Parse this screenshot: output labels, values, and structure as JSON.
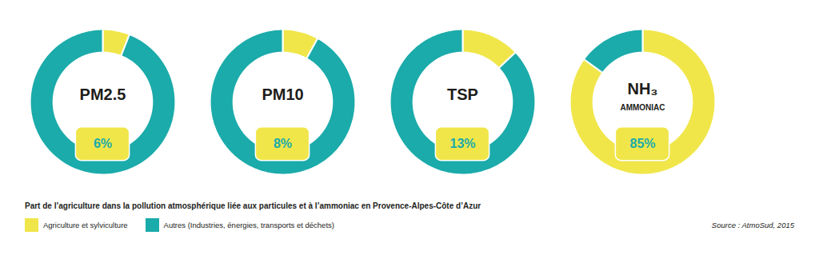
{
  "title": "Part de l’agriculture dans la pollution atmosphérique liée aux particules et à l’ammoniac en Provence-Alpes-Côte d’Azur",
  "legend": "bottom",
  "annotations": [
    "Source : AtmoSud, 2015"
  ],
  "chart_data": [
    {
      "type": "pie",
      "title": "PM2.5",
      "categories": [
        "Agriculture et sylviculture",
        "Autres (Industries, énergies, transports et déchets)"
      ],
      "values": [
        6,
        94
      ],
      "value_labels": [
        "6%",
        null
      ],
      "colors": [
        "#F0E64A",
        "#1AABAA"
      ]
    },
    {
      "type": "pie",
      "title": "PM10",
      "categories": [
        "Agriculture et sylviculture",
        "Autres (Industries, énergies, transports et déchets)"
      ],
      "values": [
        8,
        92
      ],
      "value_labels": [
        "8%",
        null
      ],
      "colors": [
        "#F0E64A",
        "#1AABAA"
      ]
    },
    {
      "type": "pie",
      "title": "TSP",
      "categories": [
        "Agriculture et sylviculture",
        "Autres (Industries, énergies, transports et déchets)"
      ],
      "values": [
        13,
        87
      ],
      "value_labels": [
        "13%",
        null
      ],
      "colors": [
        "#F0E64A",
        "#1AABAA"
      ]
    },
    {
      "type": "pie",
      "title": "NH₃",
      "subtitle": "AMMONIAC",
      "categories": [
        "Agriculture et sylviculture",
        "Autres (Industries, énergies, transports et déchets)"
      ],
      "values": [
        85,
        15
      ],
      "value_labels": [
        "85%",
        null
      ],
      "colors": [
        "#F0E64A",
        "#1AABAA"
      ]
    }
  ]
}
